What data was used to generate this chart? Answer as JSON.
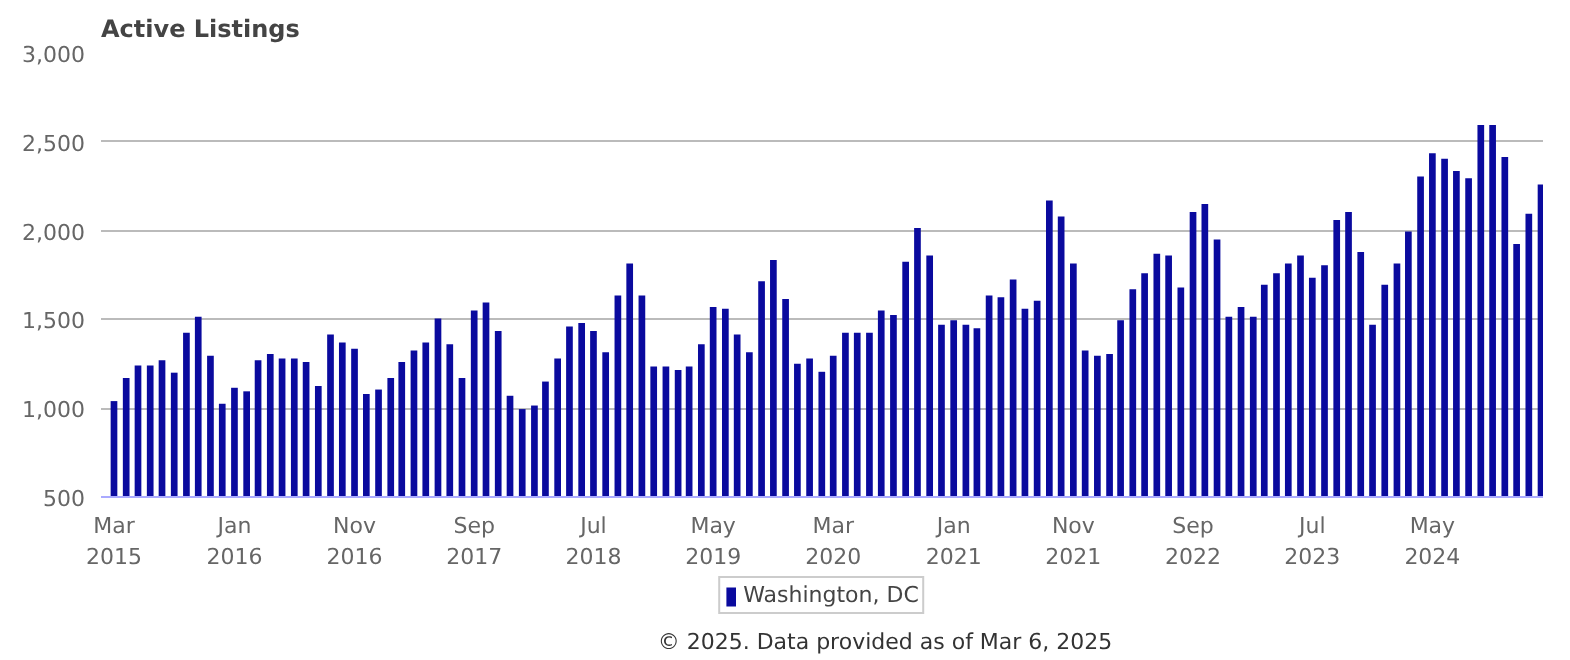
{
  "chart_data": {
    "type": "bar",
    "title": "Active Listings",
    "x": [
      "2015-03",
      "2015-04",
      "2015-05",
      "2015-06",
      "2015-07",
      "2015-08",
      "2015-09",
      "2015-10",
      "2015-11",
      "2015-12",
      "2016-01",
      "2016-02",
      "2016-03",
      "2016-04",
      "2016-05",
      "2016-06",
      "2016-07",
      "2016-08",
      "2016-09",
      "2016-10",
      "2016-11",
      "2016-12",
      "2017-01",
      "2017-02",
      "2017-03",
      "2017-04",
      "2017-05",
      "2017-06",
      "2017-07",
      "2017-08",
      "2017-09",
      "2017-10",
      "2017-11",
      "2017-12",
      "2018-01",
      "2018-02",
      "2018-03",
      "2018-04",
      "2018-05",
      "2018-06",
      "2018-07",
      "2018-08",
      "2018-09",
      "2018-10",
      "2018-11",
      "2018-12",
      "2019-01",
      "2019-02",
      "2019-03",
      "2019-04",
      "2019-05",
      "2019-06",
      "2019-07",
      "2019-08",
      "2019-09",
      "2019-10",
      "2019-11",
      "2019-12",
      "2020-01",
      "2020-02",
      "2020-03",
      "2020-04",
      "2020-05",
      "2020-06",
      "2020-07",
      "2020-08",
      "2020-09",
      "2020-10",
      "2020-11",
      "2020-12",
      "2021-01",
      "2021-02",
      "2021-03",
      "2021-04",
      "2021-05",
      "2021-06",
      "2021-07",
      "2021-08",
      "2021-09",
      "2021-10",
      "2021-11",
      "2021-12",
      "2022-01",
      "2022-02",
      "2022-03",
      "2022-04",
      "2022-05",
      "2022-06",
      "2022-07",
      "2022-08",
      "2022-09",
      "2022-10",
      "2022-11",
      "2022-12",
      "2023-01",
      "2023-02",
      "2023-03",
      "2023-04",
      "2023-05",
      "2023-06",
      "2023-07",
      "2023-08",
      "2023-09",
      "2023-10",
      "2023-11",
      "2023-12",
      "2024-01",
      "2024-02",
      "2024-03",
      "2024-04",
      "2024-05",
      "2024-06",
      "2024-07",
      "2024-08",
      "2024-09",
      "2024-10",
      "2024-11",
      "2024-12",
      "2025-01",
      "2025-02"
    ],
    "series": [
      {
        "name": "Washington, DC",
        "color": "#0a0a9e",
        "values": [
          1040,
          1170,
          1240,
          1240,
          1270,
          1200,
          1425,
          1515,
          1295,
          1025,
          1115,
          1095,
          1270,
          1305,
          1280,
          1280,
          1260,
          1125,
          1415,
          1370,
          1335,
          1080,
          1105,
          1170,
          1260,
          1325,
          1370,
          1505,
          1360,
          1170,
          1550,
          1595,
          1435,
          1070,
          995,
          1015,
          1150,
          1280,
          1460,
          1480,
          1435,
          1315,
          1635,
          1815,
          1635,
          1235,
          1235,
          1215,
          1235,
          1360,
          1570,
          1560,
          1415,
          1315,
          1715,
          1835,
          1615,
          1250,
          1280,
          1205,
          1295,
          1425,
          1425,
          1425,
          1550,
          1525,
          1825,
          2015,
          1860,
          1470,
          1495,
          1470,
          1450,
          1635,
          1625,
          1725,
          1560,
          1605,
          2170,
          2080,
          1815,
          1325,
          1295,
          1305,
          1495,
          1670,
          1760,
          1870,
          1860,
          1680,
          2105,
          2150,
          1950,
          1515,
          1570,
          1515,
          1695,
          1760,
          1815,
          1860,
          1735,
          1805,
          2060,
          2105,
          1880,
          1470,
          1695,
          1815,
          1995,
          2305,
          2435,
          2405,
          2335,
          2295,
          2595,
          2595,
          2415,
          1925,
          2095,
          2260
        ]
      }
    ],
    "ylim": [
      500,
      3000
    ],
    "yticks": [
      500,
      {
        "value": 1000,
        "label": "1,000"
      },
      {
        "value": 1500,
        "label": "1,500"
      },
      {
        "value": 2000,
        "label": "2,000"
      },
      {
        "value": 2500,
        "label": "2,500"
      },
      {
        "value": 3000,
        "label": "3,000"
      }
    ],
    "xlim": [
      "2015-02-10",
      "2025-02-20"
    ],
    "xticks": [
      {
        "value": "2015-03",
        "label": "Mar 2015"
      },
      {
        "value": "2016-01",
        "label": "Jan 2016"
      },
      {
        "value": "2016-11",
        "label": "Nov 2016"
      },
      {
        "value": "2017-09",
        "label": "Sep 2017"
      },
      {
        "value": "2018-07",
        "label": "Jul 2018"
      },
      {
        "value": "2019-05",
        "label": "May 2019"
      },
      {
        "value": "2020-03",
        "label": "Mar 2020"
      },
      {
        "value": "2021-01",
        "label": "Jan 2021"
      },
      {
        "value": "2021-11",
        "label": "Nov 2021"
      },
      {
        "value": "2022-09",
        "label": "Sep 2022"
      },
      {
        "value": "2023-07",
        "label": "Jul 2023"
      },
      {
        "value": "2024-05",
        "label": "May 2024"
      }
    ],
    "grid": "y",
    "legend": "bottom",
    "annotations": [
      "© 2025. Data provided as of Mar 6, 2025"
    ]
  }
}
